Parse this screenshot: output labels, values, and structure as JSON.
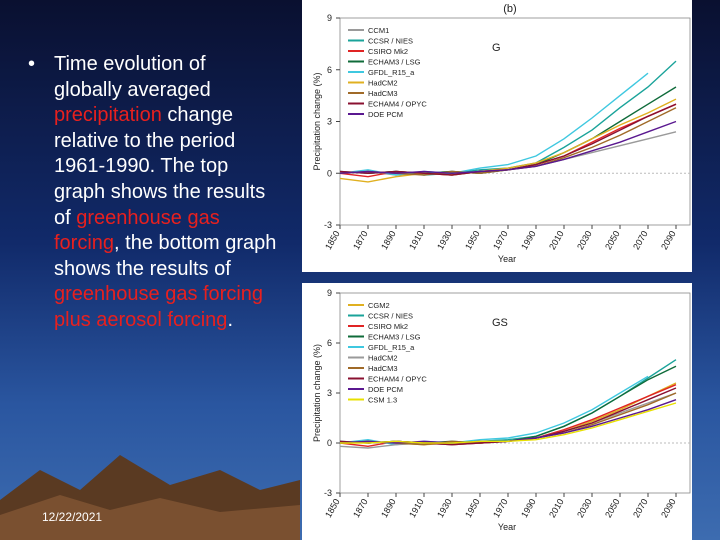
{
  "slide": {
    "bullet_parts": [
      {
        "text": "Time evolution of globally averaged ",
        "color": "#ffffff"
      },
      {
        "text": "precipitation",
        "color": "#e8201e"
      },
      {
        "text": " change relative to the period 1961-1990. The top graph shows the results of ",
        "color": "#ffffff"
      },
      {
        "text": "greenhouse gas forcing",
        "color": "#e8201e"
      },
      {
        "text": ", the bottom graph shows the results of ",
        "color": "#ffffff"
      },
      {
        "text": "greenhouse gas forcing plus aerosol forcing",
        "color": "#e8201e"
      },
      {
        "text": ".",
        "color": "#ffffff"
      }
    ],
    "date": "12/22/2021"
  },
  "chart_data": [
    {
      "type": "line",
      "panel_label": "(b)",
      "title": "G",
      "ylabel": "Precipitation change (%)",
      "xlabel": "Year",
      "x": [
        1850,
        1870,
        1890,
        1910,
        1930,
        1950,
        1970,
        1990,
        2010,
        2030,
        2050,
        2070,
        2090
      ],
      "xlim": [
        1850,
        2100
      ],
      "xticks": [
        1850,
        1870,
        1890,
        1910,
        1930,
        1950,
        1970,
        1990,
        2010,
        2030,
        2050,
        2070,
        2090
      ],
      "ylim": [
        -3,
        9
      ],
      "yticks": [
        -3,
        0,
        3,
        6,
        9
      ],
      "series": [
        {
          "name": "CCM1",
          "color": "#9a9a9a",
          "values": [
            0,
            0.1,
            -0.1,
            0,
            0.1,
            0,
            0.2,
            0.4,
            0.8,
            1.2,
            1.6,
            2.0,
            2.4
          ]
        },
        {
          "name": "CCSR / NIES",
          "color": "#1aa39a",
          "values": [
            0.1,
            0,
            0.1,
            -0.1,
            0,
            0.2,
            0.3,
            0.6,
            1.5,
            2.5,
            3.8,
            5.0,
            6.5
          ]
        },
        {
          "name": "CSIRO Mk2",
          "color": "#e02424",
          "values": [
            0,
            -0.2,
            0.1,
            0,
            -0.1,
            0.1,
            0.2,
            0.5,
            1.0,
            1.8,
            2.6,
            3.3,
            4.0
          ]
        },
        {
          "name": "ECHAM3 / LSG",
          "color": "#0f6b3a",
          "values": [
            null,
            0,
            0.1,
            0,
            0.1,
            0,
            0.2,
            0.5,
            1.2,
            2.0,
            3.0,
            4.0,
            5.0
          ]
        },
        {
          "name": "GFDL_R15_a",
          "color": "#3fc8e0",
          "values": [
            0,
            0.2,
            -0.1,
            0.1,
            0,
            0.3,
            0.5,
            1.0,
            2.0,
            3.2,
            4.5,
            5.8,
            null
          ]
        },
        {
          "name": "HadCM2",
          "color": "#e0b020",
          "values": [
            -0.3,
            -0.5,
            -0.2,
            0,
            -0.1,
            0.1,
            0.3,
            0.6,
            1.2,
            2.0,
            2.8,
            3.5,
            4.3
          ]
        },
        {
          "name": "HadCM3",
          "color": "#a06a28",
          "values": [
            0,
            0.1,
            0,
            -0.1,
            0.1,
            0,
            0.2,
            0.4,
            0.9,
            1.5,
            2.2,
            3.0,
            3.8
          ]
        },
        {
          "name": "ECHAM4 / OPYC",
          "color": "#8a1030",
          "values": [
            0.1,
            0,
            0.1,
            0,
            -0.1,
            0.1,
            0.2,
            0.5,
            1.0,
            1.7,
            2.5,
            3.3,
            4.0
          ]
        },
        {
          "name": "DOE PCM",
          "color": "#5a1890",
          "values": [
            0,
            0.1,
            0,
            0.1,
            0,
            0.1,
            0.2,
            0.4,
            0.8,
            1.3,
            1.8,
            2.4,
            3.0
          ]
        }
      ]
    },
    {
      "type": "line",
      "title": "GS",
      "ylabel": "Precipitation change (%)",
      "xlabel": "Year",
      "x": [
        1850,
        1870,
        1890,
        1910,
        1930,
        1950,
        1970,
        1990,
        2010,
        2030,
        2050,
        2070,
        2090
      ],
      "xlim": [
        1850,
        2100
      ],
      "xticks": [
        1850,
        1870,
        1890,
        1910,
        1930,
        1950,
        1970,
        1990,
        2010,
        2030,
        2050,
        2070,
        2090
      ],
      "ylim": [
        -3,
        9
      ],
      "yticks": [
        -3,
        0,
        3,
        6,
        9
      ],
      "series": [
        {
          "name": "CGM2",
          "color": "#e0b020",
          "values": [
            0,
            0.1,
            0,
            -0.1,
            0,
            0,
            0.1,
            0.3,
            0.7,
            1.3,
            2.0,
            2.8,
            3.6
          ]
        },
        {
          "name": "CCSR / NIES",
          "color": "#1aa39a",
          "values": [
            0.1,
            0,
            0.1,
            0,
            0,
            0.1,
            0.2,
            0.4,
            1.0,
            1.8,
            2.8,
            3.9,
            5.0
          ]
        },
        {
          "name": "CSIRO Mk2",
          "color": "#e02424",
          "values": [
            0,
            -0.2,
            0.1,
            0,
            -0.1,
            0,
            0.1,
            0.3,
            0.8,
            1.4,
            2.1,
            2.8,
            3.5
          ]
        },
        {
          "name": "ECHAM3 / LSG",
          "color": "#0f6b3a",
          "values": [
            null,
            0,
            0.1,
            0,
            0.1,
            0,
            0.1,
            0.4,
            1.0,
            1.8,
            2.8,
            3.8,
            4.6
          ]
        },
        {
          "name": "GFDL_R15_a",
          "color": "#3fc8e0",
          "values": [
            0,
            0.2,
            -0.1,
            0.1,
            0,
            0.2,
            0.3,
            0.6,
            1.2,
            2.0,
            3.0,
            4.0,
            null
          ]
        },
        {
          "name": "HadCM2",
          "color": "#9a9a9a",
          "values": [
            -0.2,
            -0.3,
            -0.1,
            0,
            -0.1,
            0,
            0.1,
            0.3,
            0.7,
            1.2,
            1.8,
            2.4,
            3.0
          ]
        },
        {
          "name": "HadCM3",
          "color": "#a06a28",
          "values": [
            0,
            0.1,
            0,
            -0.1,
            0.1,
            0,
            0.1,
            0.3,
            0.6,
            1.1,
            1.7,
            2.3,
            3.0
          ]
        },
        {
          "name": "ECHAM4 / OPYC",
          "color": "#8a1030",
          "values": [
            0.1,
            0,
            0.1,
            0,
            -0.1,
            0,
            0.1,
            0.3,
            0.7,
            1.2,
            1.9,
            2.6,
            3.3
          ]
        },
        {
          "name": "DOE PCM",
          "color": "#5a1890",
          "values": [
            0,
            0.1,
            0,
            0.1,
            0,
            0.1,
            0.1,
            0.3,
            0.6,
            1.0,
            1.5,
            2.0,
            2.6
          ]
        },
        {
          "name": "CSM 1.3",
          "color": "#e8e000",
          "values": [
            0,
            0,
            0.1,
            0,
            0,
            0.1,
            0.1,
            0.2,
            0.5,
            0.9,
            1.4,
            1.9,
            2.4
          ]
        }
      ]
    }
  ]
}
